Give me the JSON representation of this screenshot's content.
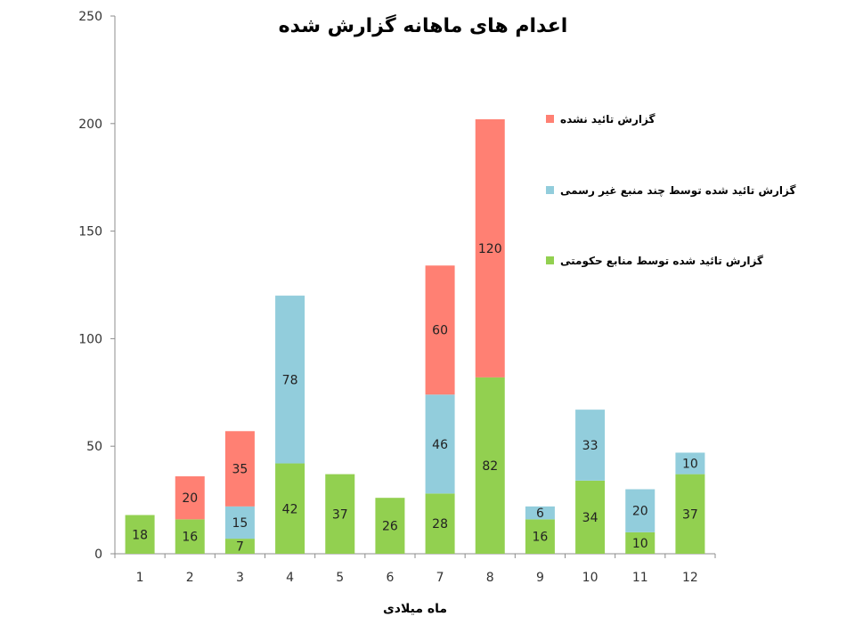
{
  "chart_data": {
    "type": "bar",
    "stacked": true,
    "title": "اعدام های ماهانه گزارش شده",
    "xlabel": "ماه میلادی",
    "ylabel": "",
    "ylim": [
      0,
      250
    ],
    "yticks": [
      0,
      50,
      100,
      150,
      200,
      250
    ],
    "grid": false,
    "legend_position": "right",
    "categories": [
      "1",
      "2",
      "3",
      "4",
      "5",
      "6",
      "7",
      "8",
      "9",
      "10",
      "11",
      "12"
    ],
    "series": [
      {
        "name": "گزارش تائید شده توسط منابع حکومتی",
        "color": "#92d050",
        "values": [
          18,
          16,
          7,
          42,
          37,
          26,
          28,
          82,
          16,
          34,
          10,
          37
        ]
      },
      {
        "name": "گزارش تائید شده توسط چند منبع غیر رسمی",
        "color": "#92cddc",
        "values": [
          0,
          0,
          15,
          78,
          0,
          0,
          46,
          0,
          6,
          33,
          20,
          10
        ]
      },
      {
        "name": "گزارش تائید نشده",
        "color": "#ff8073",
        "values": [
          0,
          20,
          35,
          0,
          0,
          0,
          60,
          120,
          0,
          0,
          0,
          0
        ]
      }
    ],
    "legend_order": [
      2,
      1,
      0
    ]
  }
}
